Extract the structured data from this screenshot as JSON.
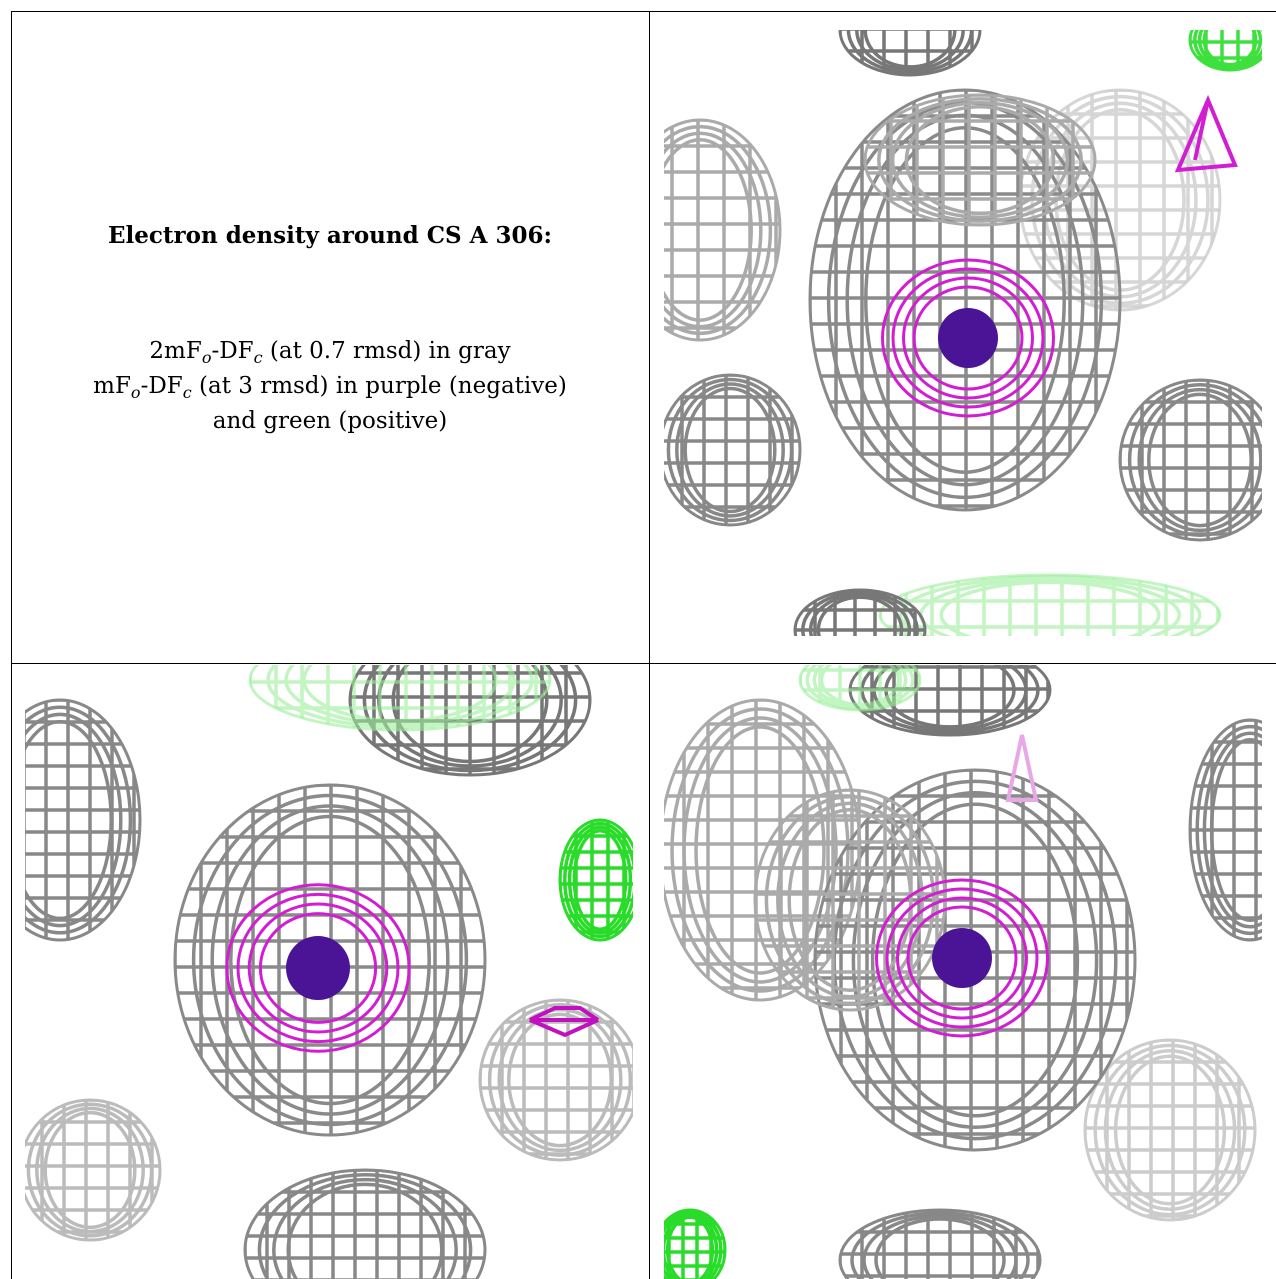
{
  "title": "Electron density around CS A 306:",
  "legend": [
    {
      "parts": [
        "2mF",
        "o",
        "-DF",
        "c",
        " (at 0.7 rmsd) in gray"
      ]
    },
    {
      "parts": [
        "mF",
        "o",
        "-DF",
        "c",
        " (at 3 rmsd) in purple (negative)"
      ]
    },
    {
      "parts": [
        "and green (positive)"
      ]
    }
  ]
}
